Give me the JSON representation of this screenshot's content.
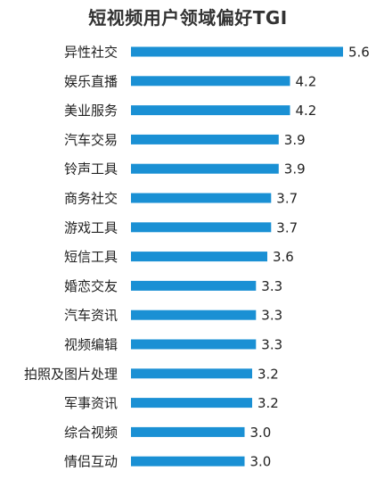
{
  "chart_data": {
    "type": "bar",
    "orientation": "horizontal",
    "title": "短视频用户领域偏好TGI",
    "categories": [
      "异性社交",
      "娱乐直播",
      "美业服务",
      "汽车交易",
      "铃声工具",
      "商务社交",
      "游戏工具",
      "短信工具",
      "婚恋交友",
      "汽车资讯",
      "视频编辑",
      "拍照及图片处理",
      "军事资讯",
      "综合视频",
      "情侣互动"
    ],
    "values": [
      5.6,
      4.2,
      4.2,
      3.9,
      3.9,
      3.7,
      3.7,
      3.6,
      3.3,
      3.3,
      3.3,
      3.2,
      3.2,
      3.0,
      3.0
    ],
    "value_labels": [
      "5.6",
      "4.2",
      "4.2",
      "3.9",
      "3.9",
      "3.7",
      "3.7",
      "3.6",
      "3.3",
      "3.3",
      "3.3",
      "3.2",
      "3.2",
      "3.0",
      "3.0"
    ],
    "xlim": [
      0,
      5.6
    ],
    "grid": false,
    "legend": "none",
    "bar_color": "#1a90d4"
  }
}
